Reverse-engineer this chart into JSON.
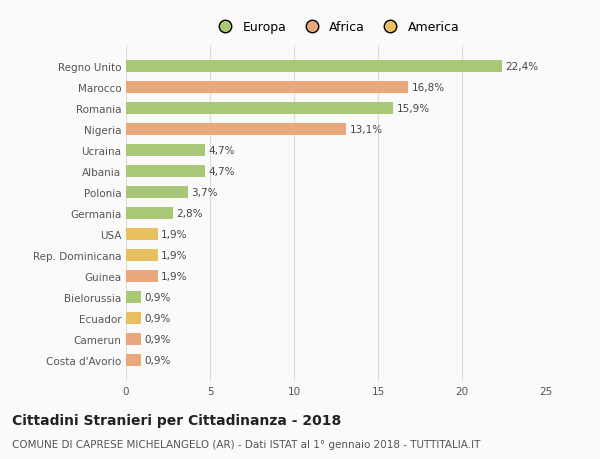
{
  "categories": [
    "Costa d'Avorio",
    "Camerun",
    "Ecuador",
    "Bielorussia",
    "Guinea",
    "Rep. Dominicana",
    "USA",
    "Germania",
    "Polonia",
    "Albania",
    "Ucraina",
    "Nigeria",
    "Romania",
    "Marocco",
    "Regno Unito"
  ],
  "values": [
    0.9,
    0.9,
    0.9,
    0.9,
    1.9,
    1.9,
    1.9,
    2.8,
    3.7,
    4.7,
    4.7,
    13.1,
    15.9,
    16.8,
    22.4
  ],
  "colors": [
    "#E8A87C",
    "#E8A87C",
    "#E8C060",
    "#A8C878",
    "#E8A87C",
    "#E8C060",
    "#E8C060",
    "#A8C878",
    "#A8C878",
    "#A8C878",
    "#A8C878",
    "#E8A87C",
    "#A8C878",
    "#E8A87C",
    "#A8C878"
  ],
  "labels": [
    "0,9%",
    "0,9%",
    "0,9%",
    "0,9%",
    "1,9%",
    "1,9%",
    "1,9%",
    "2,8%",
    "3,7%",
    "4,7%",
    "4,7%",
    "13,1%",
    "15,9%",
    "16,8%",
    "22,4%"
  ],
  "legend": [
    {
      "label": "Europa",
      "color": "#A8C878"
    },
    {
      "label": "Africa",
      "color": "#E8A87C"
    },
    {
      "label": "America",
      "color": "#E8C060"
    }
  ],
  "xlim": [
    0,
    25
  ],
  "xticks": [
    0,
    5,
    10,
    15,
    20,
    25
  ],
  "title": "Cittadini Stranieri per Cittadinanza - 2018",
  "subtitle": "COMUNE DI CAPRESE MICHELANGELO (AR) - Dati ISTAT al 1° gennaio 2018 - TUTTITALIA.IT",
  "bg_color": "#FAFAFA",
  "grid_color": "#DDDDCC",
  "bar_height": 0.55,
  "title_fontsize": 10,
  "subtitle_fontsize": 7.5,
  "tick_fontsize": 7.5,
  "label_fontsize": 7.5,
  "legend_fontsize": 9
}
